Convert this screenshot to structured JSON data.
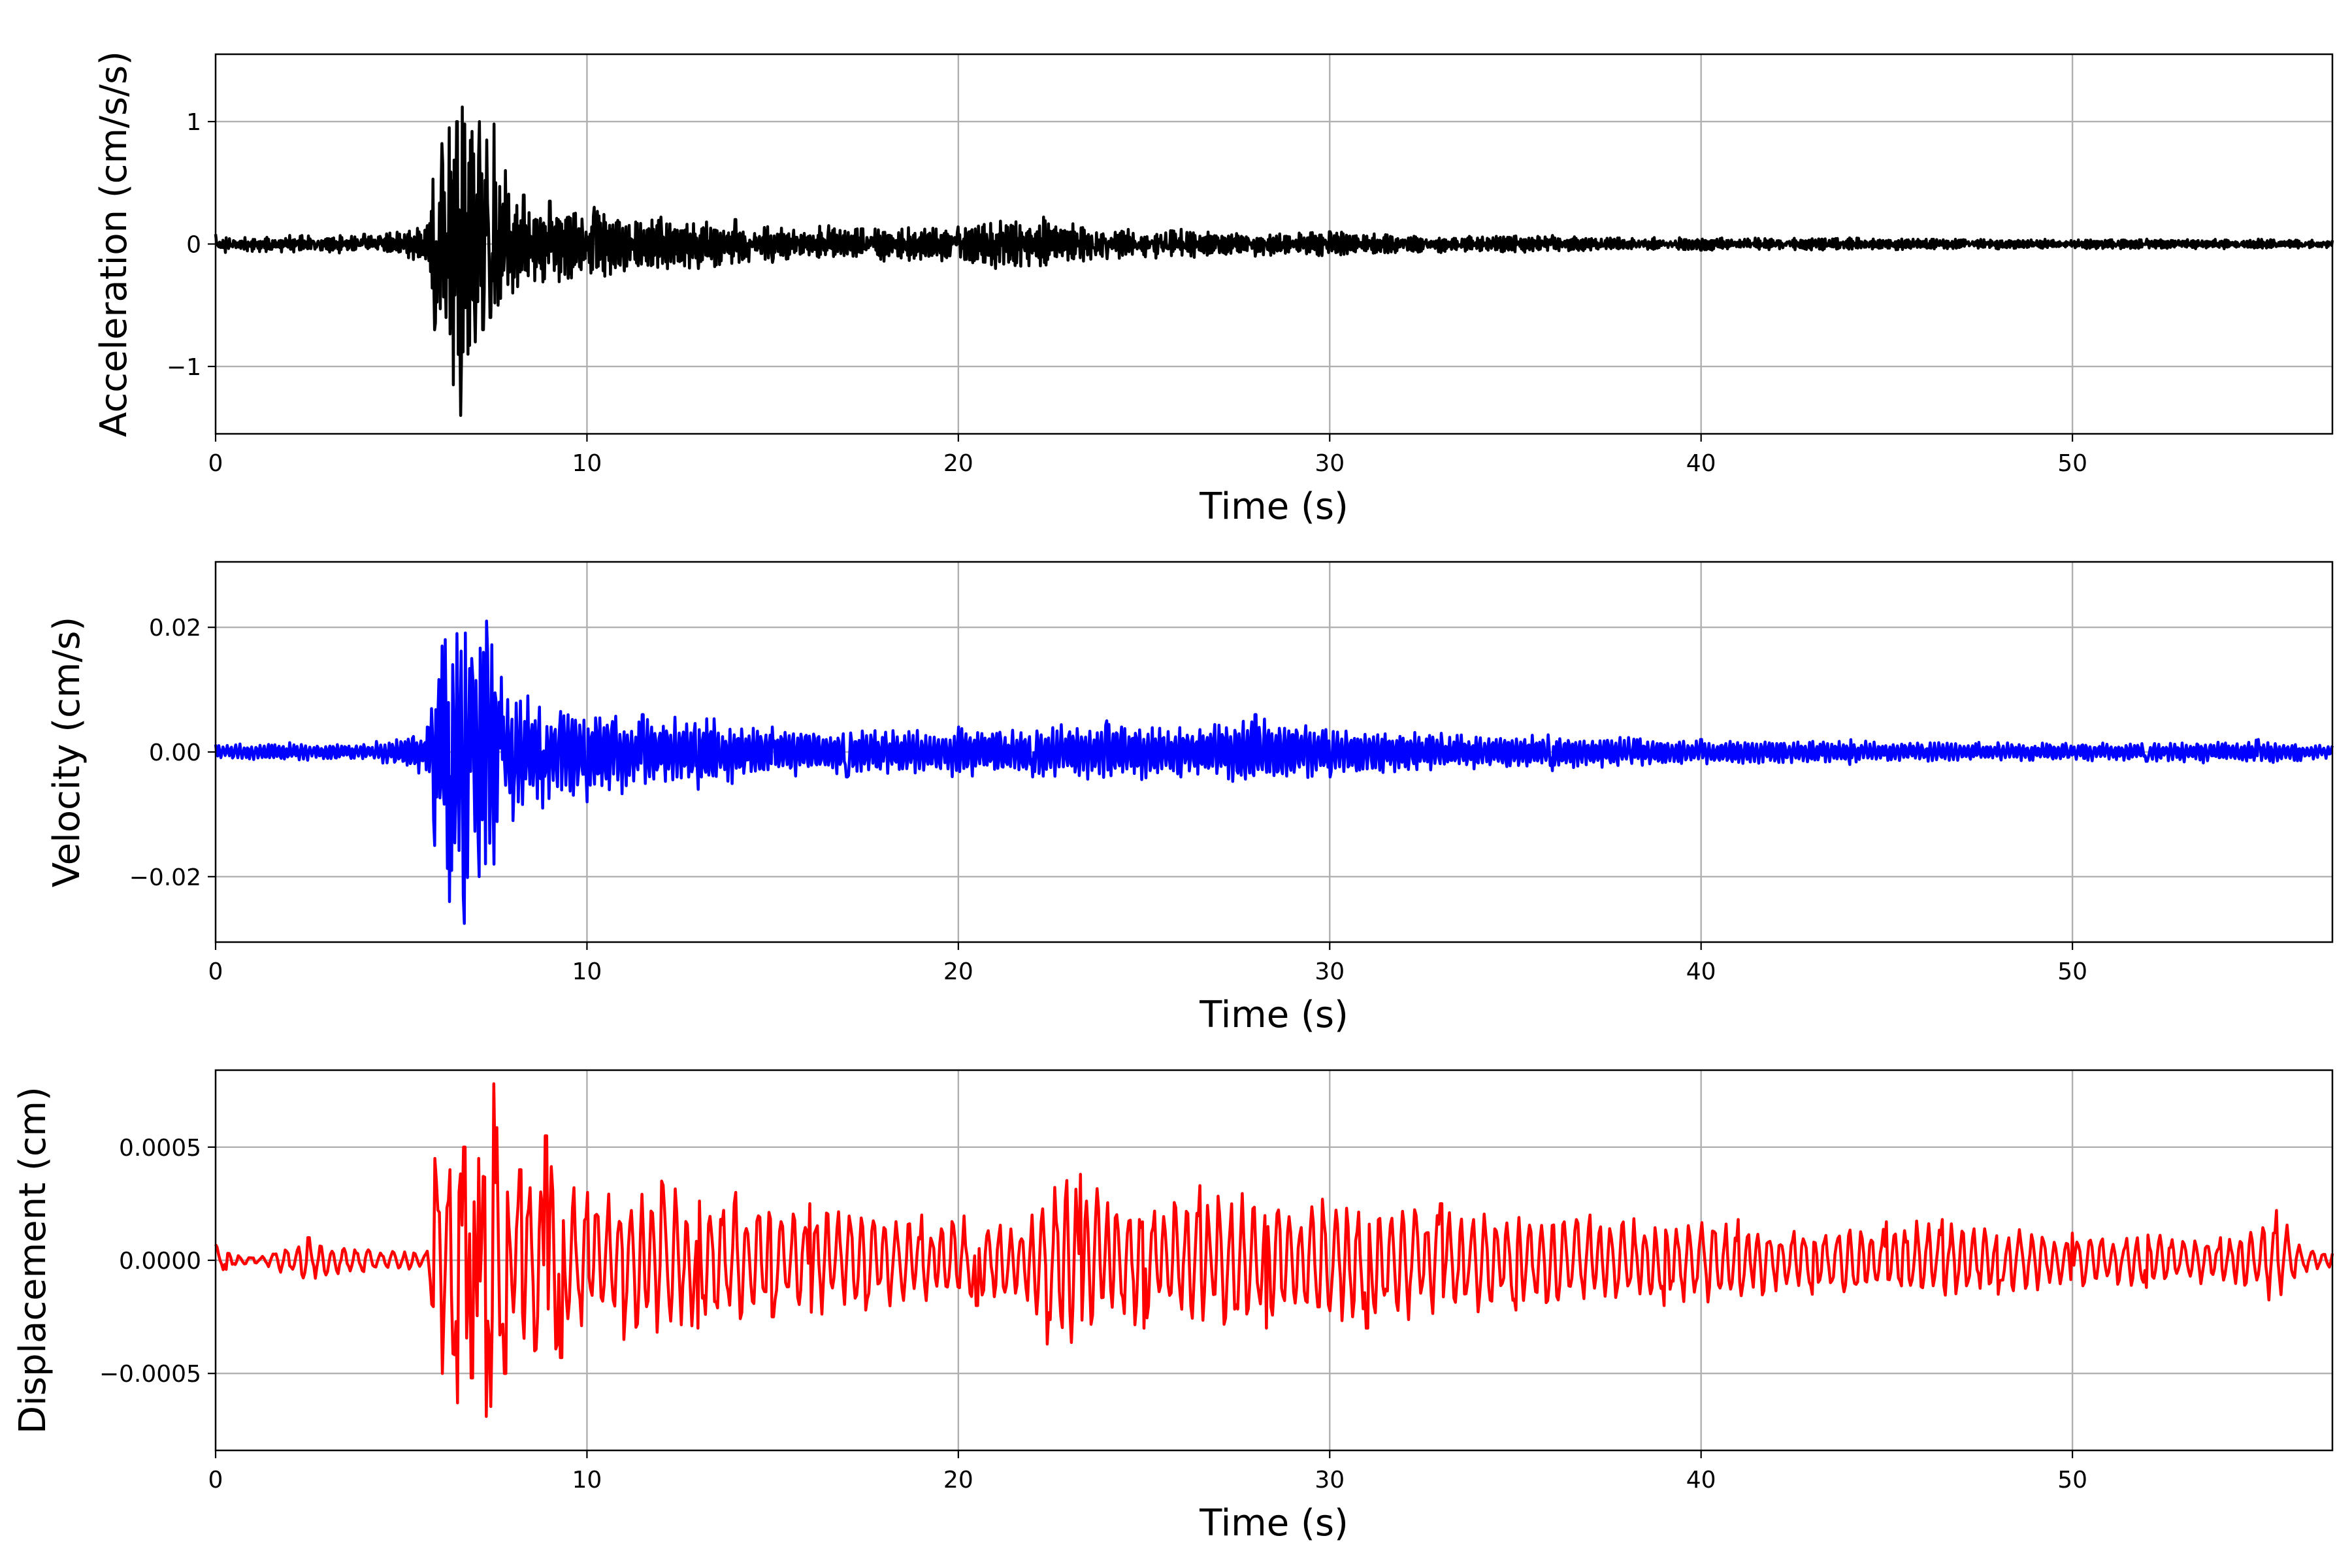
{
  "chart_data": [
    {
      "type": "line",
      "ylabel": "Acceleration (cm/s/s)",
      "xlabel": "Time (s)",
      "xlim": [
        0,
        57
      ],
      "ylim": [
        -1.55,
        1.55
      ],
      "xticks": [
        0,
        10,
        20,
        30,
        40,
        50
      ],
      "yticks": [
        -1,
        0,
        1
      ],
      "ytick_labels": [
        "−1",
        "0",
        "1"
      ],
      "grid": true,
      "color": "#000000",
      "series": [
        {
          "x": [
            0,
            2,
            4,
            5.7,
            5.9,
            6.1,
            6.2,
            6.3,
            6.4,
            6.5,
            6.6,
            6.7,
            6.8,
            6.9,
            7.0,
            7.1,
            7.2,
            7.3,
            7.4,
            7.5,
            7.6,
            7.8,
            8.0,
            8.3,
            8.6,
            9.0,
            9.5,
            10.2,
            11.0,
            12.0,
            13.0,
            14.0,
            15.0,
            16.5,
            18.0,
            20.0,
            21.0,
            22.3,
            24.0,
            26.0,
            28.0,
            30.0,
            33.0,
            36.0,
            40.0,
            44.0,
            48.0,
            52.0,
            55.0,
            57.0
          ],
          "y": [
            0.08,
            0.07,
            0.08,
            0.15,
            -0.7,
            0.82,
            -0.6,
            0.95,
            -1.15,
            1.0,
            -1.4,
            0.98,
            -0.9,
            0.92,
            -0.8,
            1.0,
            -0.7,
            0.85,
            -0.6,
            0.98,
            -0.5,
            0.6,
            -0.4,
            0.4,
            -0.3,
            0.35,
            -0.28,
            0.3,
            -0.22,
            0.22,
            -0.2,
            0.2,
            -0.15,
            0.15,
            -0.14,
            0.14,
            -0.2,
            0.22,
            -0.12,
            0.12,
            -0.1,
            0.1,
            -0.07,
            0.07,
            -0.05,
            0.05,
            -0.04,
            0.04,
            0.04,
            0.03
          ]
        }
      ]
    },
    {
      "type": "line",
      "ylabel": "Velocity (cm/s)",
      "xlabel": "Time (s)",
      "xlim": [
        0,
        57
      ],
      "ylim": [
        -0.0305,
        0.0305
      ],
      "xticks": [
        0,
        10,
        20,
        30,
        40,
        50
      ],
      "yticks": [
        -0.02,
        0,
        0.02
      ],
      "ytick_labels": [
        "−0.02",
        "0.00",
        "0.02"
      ],
      "grid": true,
      "color": "#0000ff",
      "series": [
        {
          "x": [
            0,
            2,
            4,
            5.7,
            5.9,
            6.1,
            6.3,
            6.5,
            6.7,
            6.9,
            7.1,
            7.3,
            7.5,
            7.7,
            8.0,
            8.4,
            8.8,
            9.3,
            10.0,
            11.5,
            13.0,
            15.0,
            17.0,
            20.0,
            22.0,
            24.0,
            26.0,
            28.0,
            30.0,
            33.0,
            36.0,
            40.0,
            44.0,
            48.0,
            52.0,
            55.0,
            57.0
          ],
          "y": [
            0.0012,
            0.0015,
            0.0012,
            0.004,
            -0.015,
            0.017,
            -0.024,
            0.019,
            -0.0275,
            0.015,
            -0.02,
            0.021,
            -0.018,
            0.012,
            -0.011,
            0.009,
            -0.009,
            0.0065,
            -0.008,
            0.006,
            -0.006,
            0.004,
            -0.004,
            0.004,
            -0.004,
            0.005,
            -0.004,
            0.006,
            -0.004,
            0.003,
            -0.003,
            0.002,
            -0.002,
            0.0015,
            -0.0015,
            0.002,
            0.001
          ]
        }
      ]
    },
    {
      "type": "line",
      "ylabel": "Displacement (cm)",
      "xlabel": "Time (s)",
      "xlim": [
        0,
        57
      ],
      "ylim": [
        -0.00084,
        0.00084
      ],
      "xticks": [
        0,
        10,
        20,
        30,
        40,
        50
      ],
      "yticks": [
        -0.0005,
        0,
        0.0005
      ],
      "ytick_labels": [
        "−0.0005",
        "0.0000",
        "0.0005"
      ],
      "grid": true,
      "color": "#ff0000",
      "series": [
        {
          "x": [
            0,
            0.3,
            1.0,
            2.5,
            4.0,
            5.7,
            5.9,
            6.1,
            6.3,
            6.5,
            6.7,
            6.9,
            7.1,
            7.3,
            7.5,
            7.8,
            8.2,
            8.6,
            8.9,
            9.3,
            10.0,
            11.0,
            12.0,
            13.0,
            14.0,
            15.0,
            16.0,
            17.5,
            19.0,
            20.5,
            22.0,
            22.4,
            23.3,
            25.0,
            26.5,
            28.3,
            29.8,
            31.0,
            33.0,
            35.0,
            37.0,
            39.0,
            41.0,
            43.0,
            45.0,
            46.5,
            48.0,
            50.0,
            52.0,
            54.0,
            55.5,
            56.3,
            57.0
          ],
          "y": [
            7e-05,
            -4e-05,
            1e-05,
            0.0001,
            -5e-05,
            4e-05,
            0.00045,
            -0.0005,
            0.0004,
            -0.00063,
            0.0005,
            -0.00052,
            0.00045,
            -0.00069,
            0.00078,
            -0.0005,
            0.0004,
            -0.0004,
            0.00055,
            -0.00043,
            0.0003,
            -0.00035,
            0.00035,
            -0.0003,
            0.0003,
            -0.00025,
            0.00025,
            -0.00022,
            0.0002,
            -0.0002,
            0.0002,
            -0.00037,
            0.00038,
            -0.0003,
            0.00033,
            -0.0003,
            0.00027,
            -0.0003,
            0.00025,
            -0.00022,
            0.0002,
            -0.0002,
            0.00018,
            -0.00015,
            0.00017,
            0.00018,
            -0.00015,
            0.00012,
            -0.00012,
            0.0001,
            0.00022,
            -5e-05,
            3e-05
          ]
        }
      ]
    }
  ]
}
